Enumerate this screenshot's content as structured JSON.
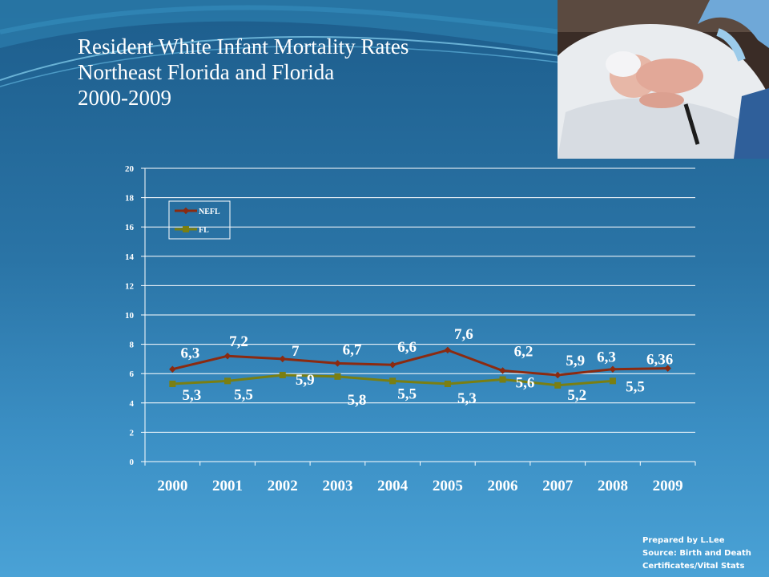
{
  "slide": {
    "title_lines": [
      "Resident White Infant Mortality Rates",
      "Northeast Florida and Florida",
      "2000-2009"
    ],
    "credit_lines": [
      "Prepared by L.Lee",
      "Source: Birth and Death",
      "Certificates/Vital Stats"
    ],
    "photo_subject": "newborn-infant-photo"
  },
  "chart_data": {
    "type": "line",
    "categories": [
      "2000",
      "2001",
      "2002",
      "2003",
      "2004",
      "2005",
      "2006",
      "2007",
      "2008",
      "2009"
    ],
    "series": [
      {
        "name": "NEFL",
        "color": "#8b2a10",
        "marker": "diamond",
        "values": [
          6.3,
          7.2,
          7.0,
          6.7,
          6.6,
          7.6,
          6.2,
          5.9,
          6.3,
          6.36
        ],
        "labels": [
          "6,3",
          "7,2",
          "7",
          "6,7",
          "6,6",
          "7,6",
          "6,2",
          "5,9",
          "6,3",
          "6,36"
        ]
      },
      {
        "name": "FL",
        "color": "#7a7f12",
        "marker": "square",
        "values": [
          5.3,
          5.5,
          5.9,
          5.8,
          5.5,
          5.3,
          5.6,
          5.2,
          5.5,
          null
        ],
        "labels": [
          "5,3",
          "5,5",
          "5,9",
          "5,8",
          "5,5",
          "5,3",
          "5,6",
          "5,2",
          "5,5",
          ""
        ]
      }
    ],
    "ylim": [
      0,
      20
    ],
    "yticks": [
      "0",
      "2",
      "4",
      "6",
      "8",
      "10",
      "12",
      "14",
      "16",
      "18",
      "20"
    ],
    "grid": true,
    "legend_position": "top-left"
  }
}
